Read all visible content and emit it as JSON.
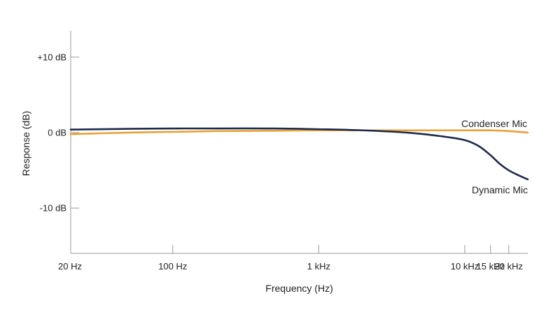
{
  "chart_data": {
    "type": "line",
    "xlabel": "Frequency (Hz)",
    "ylabel": "Response (dB)",
    "x_scale": "log",
    "xlim": [
      20,
      27000
    ],
    "ylim": [
      -16,
      13.5
    ],
    "grid": false,
    "xticks": [
      {
        "value": 20,
        "label": "20 Hz"
      },
      {
        "value": 100,
        "label": "100 Hz"
      },
      {
        "value": 1000,
        "label": "1 kHz"
      },
      {
        "value": 10000,
        "label": "10 kHz"
      },
      {
        "value": 15000,
        "label": "15 kHz"
      },
      {
        "value": 20000,
        "label": "20 kHz"
      }
    ],
    "yticks": [
      {
        "value": 10,
        "label": "+10 dB"
      },
      {
        "value": 0,
        "label": "0 dB"
      },
      {
        "value": -10,
        "label": "-10 dB"
      }
    ],
    "series": [
      {
        "name": "Condenser Mic",
        "color": "#e8a035",
        "x": [
          20,
          50,
          100,
          200,
          500,
          1000,
          2000,
          5000,
          10000,
          15000,
          20000,
          27000
        ],
        "y": [
          -0.2,
          0.0,
          0.1,
          0.2,
          0.25,
          0.3,
          0.3,
          0.3,
          0.3,
          0.3,
          0.2,
          0.0
        ]
      },
      {
        "name": "Dynamic Mic",
        "color": "#1b2a4a",
        "x": [
          20,
          50,
          100,
          200,
          500,
          1000,
          2000,
          4000,
          7000,
          10000,
          12500,
          15000,
          17500,
          20000,
          23000,
          27000
        ],
        "y": [
          0.4,
          0.5,
          0.55,
          0.55,
          0.55,
          0.45,
          0.3,
          0.0,
          -0.5,
          -1.0,
          -1.8,
          -3.0,
          -4.2,
          -5.0,
          -5.6,
          -6.2
        ]
      }
    ]
  }
}
